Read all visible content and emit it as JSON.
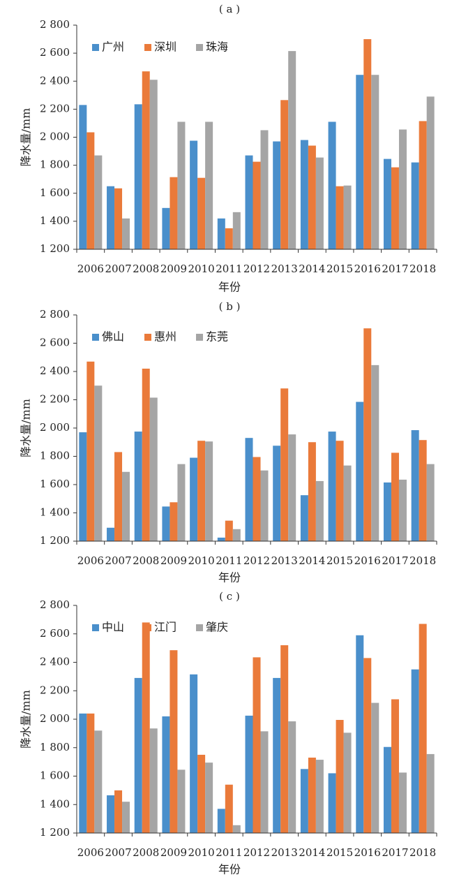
{
  "colors": {
    "series1": "#4a8fcb",
    "series2": "#ea7a3a",
    "series3": "#a5a5a5"
  },
  "chart_data": [
    {
      "type": "bar",
      "panel_label": "( a )",
      "categories": [
        "2006",
        "2007",
        "2008",
        "2009",
        "2010",
        "2011",
        "2012",
        "2013",
        "2014",
        "2015",
        "2016",
        "2017",
        "2018"
      ],
      "series": [
        {
          "name": "广州",
          "values": [
            2230,
            1650,
            2235,
            1495,
            1975,
            1420,
            1870,
            1970,
            1980,
            2110,
            2445,
            1845,
            1820
          ]
        },
        {
          "name": "深圳",
          "values": [
            2035,
            1635,
            2470,
            1715,
            1710,
            1350,
            1825,
            2265,
            1940,
            1650,
            2700,
            1785,
            2115
          ]
        },
        {
          "name": "珠海",
          "values": [
            1870,
            1420,
            2410,
            2110,
            2110,
            1465,
            2050,
            2615,
            1855,
            1655,
            2445,
            2055,
            2290
          ]
        }
      ],
      "ylabel": "降水量/mm",
      "xlabel": "年份",
      "ylim": [
        1200,
        2800
      ],
      "yticks": [
        1200,
        1400,
        1600,
        1800,
        2000,
        2200,
        2400,
        2600,
        2800
      ],
      "ytick_labels": [
        "1 200",
        "1 400",
        "1 600",
        "1 800",
        "2 000",
        "2 200",
        "2 400",
        "2 600",
        "2 800"
      ],
      "legend": "top-left",
      "grid": false
    },
    {
      "type": "bar",
      "panel_label": "( b )",
      "categories": [
        "2006",
        "2007",
        "2008",
        "2009",
        "2010",
        "2011",
        "2012",
        "2013",
        "2014",
        "2015",
        "2016",
        "2017",
        "2018"
      ],
      "series": [
        {
          "name": "佛山",
          "values": [
            1970,
            1295,
            1975,
            1445,
            1790,
            1225,
            1930,
            1875,
            1525,
            1975,
            2185,
            1615,
            1985
          ]
        },
        {
          "name": "惠州",
          "values": [
            2470,
            1830,
            2420,
            1475,
            1910,
            1345,
            1795,
            2280,
            1900,
            1910,
            2705,
            1825,
            1915
          ]
        },
        {
          "name": "东莞",
          "values": [
            2300,
            1690,
            2215,
            1745,
            1905,
            1285,
            1700,
            1955,
            1625,
            1735,
            2445,
            1635,
            1745
          ]
        }
      ],
      "ylabel": "降水量/mm",
      "xlabel": "年份",
      "ylim": [
        1200,
        2800
      ],
      "yticks": [
        1200,
        1400,
        1600,
        1800,
        2000,
        2200,
        2400,
        2600,
        2800
      ],
      "ytick_labels": [
        "1 200",
        "1 400",
        "1 600",
        "1 800",
        "2 000",
        "2 200",
        "2 400",
        "2 600",
        "2 800"
      ],
      "legend": "top-left",
      "grid": false
    },
    {
      "type": "bar",
      "panel_label": "( c )",
      "categories": [
        "2006",
        "2007",
        "2008",
        "2009",
        "2010",
        "2011",
        "2012",
        "2013",
        "2014",
        "2015",
        "2016",
        "2017",
        "2018"
      ],
      "series": [
        {
          "name": "中山",
          "values": [
            2040,
            1465,
            2290,
            2020,
            2315,
            1370,
            2025,
            2290,
            1650,
            1620,
            2590,
            1805,
            2350
          ]
        },
        {
          "name": "江门",
          "values": [
            2040,
            1500,
            2680,
            2485,
            1750,
            1540,
            2435,
            2520,
            1730,
            1995,
            2430,
            2140,
            2670
          ]
        },
        {
          "name": "肇庆",
          "values": [
            1920,
            1420,
            1935,
            1645,
            1695,
            1255,
            1915,
            1985,
            1715,
            1905,
            2115,
            1625,
            1755
          ]
        }
      ],
      "ylabel": "降水量/mm",
      "xlabel": "年份",
      "ylim": [
        1200,
        2800
      ],
      "yticks": [
        1200,
        1400,
        1600,
        1800,
        2000,
        2200,
        2400,
        2600,
        2800
      ],
      "ytick_labels": [
        "1 200",
        "1 400",
        "1 600",
        "1 800",
        "2 000",
        "2 200",
        "2 400",
        "2 600",
        "2 800"
      ],
      "legend": "top-left",
      "grid": false
    }
  ]
}
